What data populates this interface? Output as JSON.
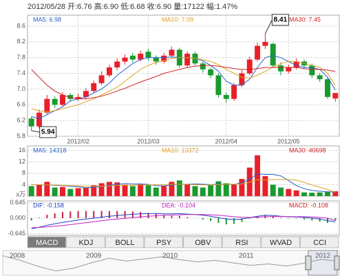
{
  "header": "2012/05/28 开:6.76 高:6.90 低:6.68 收:6.90 量:17122 幅:1.47%",
  "tabs": [
    "MACD",
    "KDJ",
    "BOLL",
    "PSY",
    "OBV",
    "RSI",
    "WVAD",
    "CCI"
  ],
  "selected_tab": "MACD",
  "navigator": {
    "labels": [
      "2008",
      "2009",
      "2010",
      "2011",
      "2012"
    ],
    "values": [
      8.5,
      7.2,
      5.5,
      4.2,
      5.0,
      6.5,
      7.8,
      7.0,
      7.6,
      8.2,
      7.4,
      6.8,
      7.2,
      6.5,
      5.8,
      6.2,
      5.6,
      6.4,
      7.5,
      6.9
    ],
    "ylim": [
      3,
      10
    ]
  },
  "chart_data": [
    {
      "type": "candlestick",
      "color_up": "#e8202a",
      "color_down": "#1a9a2e",
      "categories": [
        null,
        null,
        null,
        null,
        null,
        null,
        "2012/02",
        null,
        null,
        null,
        null,
        null,
        null,
        null,
        null,
        "2012/03",
        null,
        null,
        null,
        null,
        null,
        null,
        null,
        null,
        null,
        "2012/04",
        null,
        null,
        null,
        null,
        null,
        null,
        null,
        "2012/05",
        null,
        null,
        null,
        null,
        null,
        null
      ],
      "open": [
        6.25,
        6.05,
        6.4,
        6.75,
        6.6,
        6.85,
        6.75,
        6.8,
        6.95,
        7.15,
        7.35,
        7.55,
        7.7,
        7.85,
        7.75,
        7.95,
        7.8,
        7.7,
        7.85,
        8.0,
        7.6,
        7.9,
        7.65,
        7.5,
        7.35,
        6.85,
        6.75,
        7.1,
        7.4,
        7.75,
        8.1,
        8.15,
        7.6,
        7.45,
        7.55,
        7.7,
        7.6,
        7.35,
        7.25,
        6.76
      ],
      "close": [
        6.05,
        6.4,
        6.75,
        6.6,
        6.85,
        6.75,
        6.8,
        6.95,
        7.15,
        7.35,
        7.55,
        7.7,
        7.8,
        7.75,
        7.9,
        7.8,
        7.7,
        7.85,
        8.0,
        7.6,
        7.9,
        7.65,
        7.5,
        7.35,
        6.85,
        6.75,
        7.1,
        7.4,
        7.75,
        8.1,
        8.2,
        7.6,
        7.45,
        7.55,
        7.7,
        7.6,
        7.35,
        7.25,
        6.8,
        6.9
      ],
      "high": [
        6.3,
        6.48,
        6.85,
        6.82,
        6.92,
        6.9,
        6.88,
        7.02,
        7.22,
        7.45,
        7.62,
        7.78,
        7.88,
        7.92,
        7.98,
        8.02,
        7.86,
        7.92,
        8.08,
        8.05,
        7.96,
        7.95,
        7.7,
        7.55,
        7.4,
        6.92,
        7.15,
        7.48,
        7.82,
        8.18,
        8.41,
        8.18,
        7.68,
        7.62,
        7.78,
        7.75,
        7.65,
        7.4,
        7.28,
        6.9
      ],
      "low": [
        5.94,
        6.0,
        6.35,
        6.52,
        6.55,
        6.68,
        6.7,
        6.75,
        6.9,
        7.1,
        7.3,
        7.48,
        7.62,
        7.68,
        7.7,
        7.72,
        7.62,
        7.65,
        7.8,
        7.55,
        7.55,
        7.6,
        7.42,
        7.28,
        6.78,
        6.65,
        6.7,
        7.05,
        7.35,
        7.7,
        8.02,
        7.55,
        7.35,
        7.4,
        7.5,
        7.52,
        7.28,
        7.18,
        6.75,
        6.68
      ],
      "series": [
        {
          "name": "MA5: 6.98",
          "color": "#2060d0",
          "values": [
            6.3,
            6.25,
            6.35,
            6.45,
            6.55,
            6.7,
            6.75,
            6.8,
            6.9,
            7.0,
            7.15,
            7.35,
            7.5,
            7.65,
            7.75,
            7.8,
            7.8,
            7.8,
            7.82,
            7.8,
            7.8,
            7.78,
            7.72,
            7.6,
            7.45,
            7.2,
            7.1,
            7.1,
            7.25,
            7.55,
            7.8,
            7.85,
            7.8,
            7.7,
            7.6,
            7.55,
            7.55,
            7.5,
            7.3,
            6.98
          ]
        },
        {
          "name": "MA10: 7.09",
          "color": "#e0a020",
          "values": [
            6.5,
            6.45,
            6.42,
            6.45,
            6.5,
            6.55,
            6.6,
            6.68,
            6.75,
            6.85,
            6.95,
            7.05,
            7.2,
            7.35,
            7.5,
            7.6,
            7.68,
            7.72,
            7.78,
            7.8,
            7.8,
            7.78,
            7.75,
            7.7,
            7.62,
            7.5,
            7.4,
            7.3,
            7.28,
            7.35,
            7.45,
            7.55,
            7.65,
            7.7,
            7.7,
            7.65,
            7.6,
            7.55,
            7.4,
            7.09
          ]
        },
        {
          "name": "MA30: 7.45",
          "color": "#d02020",
          "values": [
            7.5,
            7.3,
            7.1,
            6.95,
            6.85,
            6.78,
            6.75,
            6.75,
            6.78,
            6.82,
            6.88,
            6.95,
            7.02,
            7.1,
            7.18,
            7.25,
            7.32,
            7.4,
            7.45,
            7.5,
            7.55,
            7.58,
            7.6,
            7.6,
            7.58,
            7.55,
            7.52,
            7.5,
            7.5,
            7.52,
            7.55,
            7.55,
            7.55,
            7.55,
            7.55,
            7.52,
            7.5,
            7.5,
            7.48,
            7.45
          ]
        }
      ],
      "ylim": [
        5.8,
        8.88
      ],
      "yticks": [
        5.8,
        6.2,
        6.6,
        {
          "value": 7,
          "label": "7.0"
        },
        7.4,
        7.8,
        8.2,
        8.6
      ],
      "grid": true
    },
    {
      "type": "bar",
      "y_label": "x万",
      "values": [
        3.5,
        4.0,
        5.0,
        3.0,
        3.2,
        2.5,
        2.8,
        3.0,
        3.8,
        4.5,
        5.0,
        4.8,
        4.0,
        3.5,
        4.2,
        3.8,
        3.0,
        3.5,
        5.0,
        5.5,
        4.0,
        3.5,
        3.0,
        3.8,
        5.2,
        4.5,
        4.0,
        6.0,
        10.0,
        14.3,
        7.0,
        4.0,
        3.0,
        2.5,
        2.0,
        1.3,
        1.2,
        1.3,
        1.6,
        1.71
      ],
      "series": [
        {
          "name": "MA5: 14318",
          "color": "#2060d0",
          "values": [
            4.0,
            3.9,
            3.9,
            3.8,
            3.7,
            3.5,
            3.3,
            2.9,
            3.1,
            3.4,
            3.8,
            4.2,
            4.4,
            4.3,
            4.3,
            4.1,
            3.7,
            3.6,
            3.9,
            4.2,
            4.2,
            4.3,
            4.2,
            4.0,
            4.2,
            4.2,
            4.1,
            4.7,
            5.9,
            7.8,
            7.6,
            7.6,
            7.1,
            5.4,
            3.7,
            2.6,
            2.0,
            1.7,
            1.5,
            1.43
          ]
        },
        {
          "name": "MA10: 13372",
          "color": "#e0a020",
          "values": [
            4.0,
            4.0,
            3.9,
            3.9,
            3.8,
            3.7,
            3.6,
            3.4,
            3.4,
            3.5,
            3.6,
            3.8,
            3.8,
            3.8,
            3.9,
            3.9,
            4.0,
            4.0,
            4.1,
            4.2,
            4.1,
            4.0,
            3.9,
            3.9,
            4.0,
            4.2,
            4.2,
            4.3,
            4.8,
            5.8,
            5.6,
            5.8,
            5.8,
            5.8,
            5.6,
            4.8,
            3.9,
            3.1,
            2.3,
            1.34
          ]
        },
        {
          "name": "MA30: 40698",
          "color": "#d02020",
          "values": null
        }
      ],
      "ylim": [
        0,
        17.6
      ],
      "yticks": [
        4,
        8,
        12,
        16
      ]
    },
    {
      "type": "macd",
      "color_up": "#c02040",
      "color_down": "#1a9a2e",
      "values": [
        -0.1,
        0.02,
        0.14,
        0.2,
        0.26,
        0.28,
        0.3,
        0.3,
        0.3,
        0.3,
        0.3,
        0.3,
        0.3,
        0.28,
        0.26,
        0.22,
        0.18,
        0.12,
        0.1,
        0.1,
        0.04,
        0.0,
        -0.06,
        -0.12,
        -0.2,
        -0.26,
        -0.24,
        -0.16,
        -0.02,
        0.08,
        0.12,
        0.08,
        0.02,
        -0.02,
        -0.02,
        -0.06,
        -0.1,
        -0.14,
        -0.2,
        -0.108
      ],
      "series": [
        {
          "name": "DIF: -0.158",
          "color": "#2040c0",
          "values": [
            -0.45,
            -0.38,
            -0.3,
            -0.24,
            -0.18,
            -0.13,
            -0.08,
            -0.04,
            0.0,
            0.04,
            0.08,
            0.11,
            0.14,
            0.16,
            0.18,
            0.19,
            0.19,
            0.18,
            0.18,
            0.19,
            0.17,
            0.15,
            0.12,
            0.08,
            0.02,
            -0.04,
            -0.06,
            -0.04,
            0.02,
            0.08,
            0.12,
            0.11,
            0.08,
            0.06,
            0.05,
            0.03,
            0.0,
            -0.04,
            -0.1,
            -0.158
          ]
        },
        {
          "name": "DEA: -0.104",
          "color": "#c020c0",
          "values": [
            -0.4,
            -0.39,
            -0.37,
            -0.34,
            -0.31,
            -0.27,
            -0.23,
            -0.19,
            -0.15,
            -0.11,
            -0.07,
            -0.04,
            -0.01,
            0.02,
            0.05,
            0.08,
            0.1,
            0.12,
            0.13,
            0.14,
            0.15,
            0.15,
            0.15,
            0.14,
            0.12,
            0.09,
            0.06,
            0.04,
            0.03,
            0.04,
            0.06,
            0.07,
            0.07,
            0.07,
            0.06,
            0.06,
            0.05,
            0.03,
            0.0,
            -0.104
          ]
        },
        {
          "name": "MACD: -0.108",
          "color": "#d02020",
          "values": null
        }
      ],
      "ylim": [
        -0.72,
        0.72
      ],
      "yticks": [
        0.645,
        {
          "value": 0,
          "label": "0.000"
        },
        -0.645
      ]
    }
  ]
}
